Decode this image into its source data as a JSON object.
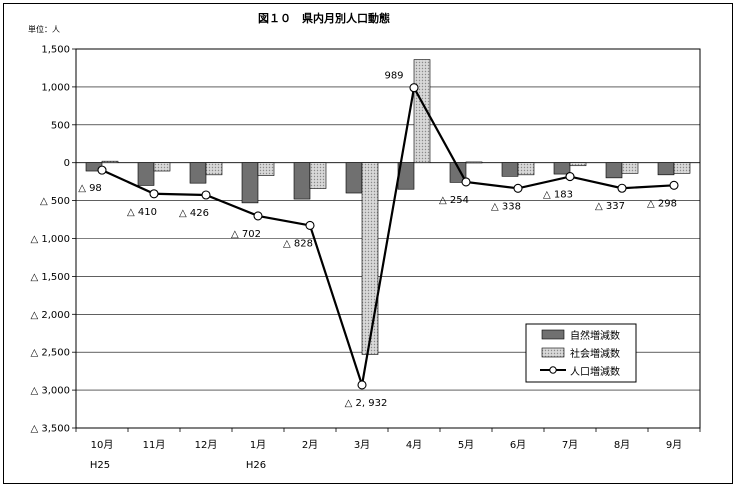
{
  "chart_data": {
    "type": "bar",
    "title": "図１０　県内月別人口動態",
    "unit_label": "単位：人",
    "categories": [
      "10月",
      "11月",
      "12月",
      "1月",
      "2月",
      "3月",
      "4月",
      "5月",
      "6月",
      "7月",
      "8月",
      "9月"
    ],
    "year_labels": [
      "H25",
      "",
      "",
      "H26",
      "",
      "",
      "",
      "",
      "",
      "",
      "",
      ""
    ],
    "ylim": [
      -3500,
      1500
    ],
    "yticks": [
      1500,
      1000,
      500,
      0,
      -500,
      -1000,
      -1500,
      -2000,
      -2500,
      -3000,
      -3500
    ],
    "ytick_labels": [
      "1,500",
      "1,000",
      "500",
      "0",
      "△ 500",
      "△ 1,000",
      "△ 1,500",
      "△ 2,000",
      "△ 2,500",
      "△ 3,000",
      "△ 3,500"
    ],
    "grid": true,
    "legend_position": "bottom-right",
    "series": [
      {
        "name": "自然増減数",
        "kind": "bar",
        "color": "#707070",
        "pattern": "solid",
        "values": [
          -110,
          -300,
          -270,
          -530,
          -480,
          -400,
          -350,
          -260,
          -180,
          -150,
          -200,
          -160
        ]
      },
      {
        "name": "社会増減数",
        "kind": "bar",
        "color": "#c8c8c8",
        "pattern": "dots",
        "values": [
          20,
          -110,
          -160,
          -170,
          -340,
          -2530,
          1360,
          10,
          -160,
          -40,
          -140,
          -140
        ]
      },
      {
        "name": "人口増減数",
        "kind": "line",
        "color": "#000000",
        "values": [
          -98,
          -410,
          -426,
          -702,
          -828,
          -2932,
          989,
          -254,
          -338,
          -183,
          -337,
          -298
        ]
      }
    ],
    "data_labels": [
      "△ 98",
      "△ 410",
      "△ 426",
      "△ 702",
      "△ 828",
      "△ 2, 932",
      "989",
      "△ 254",
      "△ 338",
      "△ 183",
      "△ 337",
      "△ 298"
    ]
  }
}
